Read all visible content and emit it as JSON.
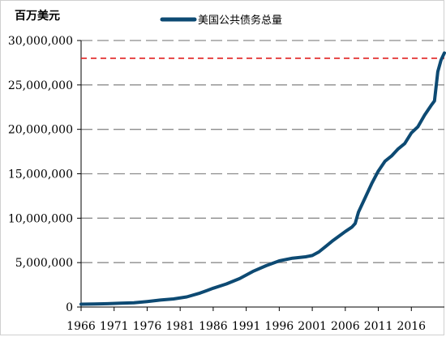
{
  "chart_data": {
    "type": "line",
    "unit_label": "百万美元",
    "legend_position": "top-center",
    "grid": "horizontal-dashed",
    "ylim": [
      0,
      30000000
    ],
    "xlim": [
      1966,
      2021
    ],
    "y_ticks": [
      {
        "value": 0,
        "label": "0"
      },
      {
        "value": 5000000,
        "label": "5,000,000"
      },
      {
        "value": 10000000,
        "label": "10,000,000"
      },
      {
        "value": 15000000,
        "label": "15,000,000"
      },
      {
        "value": 20000000,
        "label": "20,000,000"
      },
      {
        "value": 25000000,
        "label": "25,000,000"
      },
      {
        "value": 30000000,
        "label": "30,000,000"
      }
    ],
    "x_ticks": [
      {
        "value": 1966,
        "label": "1966"
      },
      {
        "value": 1971,
        "label": "1971"
      },
      {
        "value": 1976,
        "label": "1976"
      },
      {
        "value": 1981,
        "label": "1981"
      },
      {
        "value": 1986,
        "label": "1986"
      },
      {
        "value": 1991,
        "label": "1991"
      },
      {
        "value": 1996,
        "label": "1996"
      },
      {
        "value": 2001,
        "label": "2001"
      },
      {
        "value": 2006,
        "label": "2006"
      },
      {
        "value": 2011,
        "label": "2011"
      },
      {
        "value": 2016,
        "label": "2016"
      }
    ],
    "reference_line": {
      "value": 28000000,
      "color": "#e02020"
    },
    "series": [
      {
        "name": "美国公共债务总量",
        "color": "#0d4a73",
        "x": [
          1966,
          1968,
          1970,
          1972,
          1974,
          1976,
          1978,
          1980,
          1982,
          1984,
          1986,
          1988,
          1990,
          1992,
          1994,
          1996,
          1998,
          2000,
          2001,
          2002,
          2003,
          2004,
          2005,
          2006,
          2007,
          2007.5,
          2008,
          2009,
          2010,
          2011,
          2012,
          2013,
          2014,
          2015,
          2016,
          2017,
          2018,
          2019,
          2019.5,
          2020,
          2020.5,
          2021
        ],
        "values": [
          320000,
          350000,
          370000,
          430000,
          480000,
          620000,
          780000,
          910000,
          1140000,
          1570000,
          2120000,
          2600000,
          3200000,
          4000000,
          4650000,
          5200000,
          5500000,
          5650000,
          5800000,
          6200000,
          6800000,
          7400000,
          7950000,
          8500000,
          9000000,
          9400000,
          10700000,
          12300000,
          13900000,
          15300000,
          16400000,
          17000000,
          17800000,
          18400000,
          19600000,
          20300000,
          21600000,
          22700000,
          23200000,
          26500000,
          27800000,
          28600000
        ]
      }
    ]
  }
}
